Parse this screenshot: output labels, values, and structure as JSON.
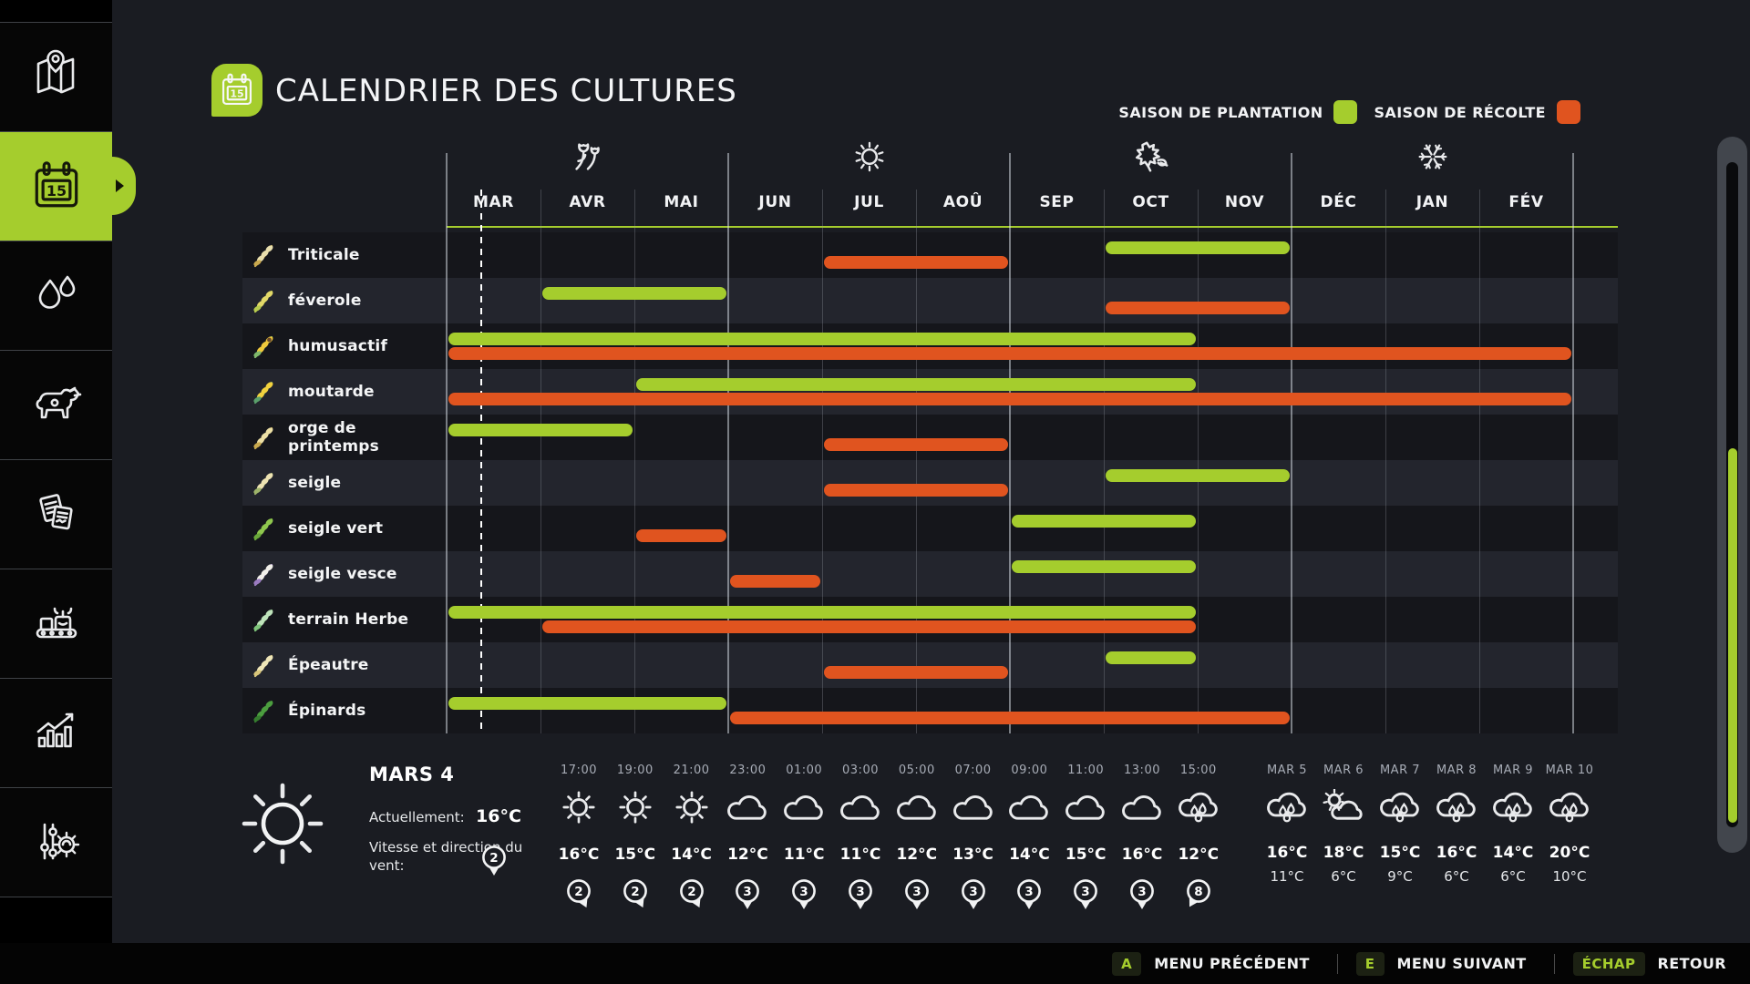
{
  "colors": {
    "plantation_green": "#a5cd2d",
    "recolte_orange": "#e0541f",
    "background": "#1a1c22",
    "row_dark": "#15161b",
    "row_light": "#23252d"
  },
  "header": {
    "title": "CALENDRIER DES CULTURES",
    "title_icon": "calendar-icon",
    "legend": [
      {
        "label": "SAISON DE PLANTATION",
        "color": "#a5cd2d"
      },
      {
        "label": "SAISON DE RÉCOLTE",
        "color": "#e0541f"
      }
    ]
  },
  "sidebar": {
    "items": [
      {
        "icon": "map-icon",
        "selected": false
      },
      {
        "icon": "calendar-icon",
        "selected": true
      },
      {
        "icon": "water-drops-icon",
        "selected": false
      },
      {
        "icon": "livestock-cow-icon",
        "selected": false
      },
      {
        "icon": "contracts-documents-icon",
        "selected": false
      },
      {
        "icon": "production-conveyor-icon",
        "selected": false
      },
      {
        "icon": "statistics-chart-icon",
        "selected": false
      },
      {
        "icon": "settings-sliders-gear-icon",
        "selected": false
      }
    ]
  },
  "chart_data": {
    "type": "gantt",
    "title": "CALENDRIER DES CULTURES",
    "months": [
      "MAR",
      "AVR",
      "MAI",
      "JUN",
      "JUL",
      "AOÛ",
      "SEP",
      "OCT",
      "NOV",
      "DÉC",
      "JAN",
      "FÉV"
    ],
    "season_icons": [
      {
        "icon": "spring-flower-icon",
        "month_index": 1
      },
      {
        "icon": "summer-sun-icon",
        "month_index": 4
      },
      {
        "icon": "autumn-leaf-icon",
        "month_index": 7
      },
      {
        "icon": "winter-snowflake-icon",
        "month_index": 10
      }
    ],
    "current_day_line_month_fraction": 0.36,
    "legend_plant": "SAISON DE PLANTATION",
    "legend_harvest": "SAISON DE RÉCOLTE",
    "crops": [
      {
        "name": "Triticale",
        "plant": [
          7,
          8
        ],
        "harvest": [
          4,
          5
        ],
        "plant_months": "OCT-NOV",
        "harvest_months": "JUL-AOÛ",
        "icon_colors": [
          "#e9dfae",
          "#c9a94e",
          ""
        ]
      },
      {
        "name": "féverole",
        "plant": [
          1,
          2
        ],
        "harvest": [
          7,
          8
        ],
        "plant_months": "AVR-MAI",
        "harvest_months": "OCT-NOV",
        "icon_colors": [
          "#e3d968",
          "#b8cc4e",
          ""
        ]
      },
      {
        "name": "humusactif",
        "plant": [
          0,
          7
        ],
        "harvest": [
          0,
          11
        ],
        "plant_months": "MAR-OCT",
        "harvest_months": "MAR-FÉV",
        "icon_colors": [
          "#f0c93c",
          "#7fb86b",
          "#6b4a2b"
        ]
      },
      {
        "name": "moutarde",
        "plant": [
          2,
          7
        ],
        "harvest": [
          0,
          11
        ],
        "plant_months": "MAI-OCT",
        "harvest_months": "MAR-FÉV",
        "icon_colors": [
          "#f2d23e",
          "#5aa06b",
          ""
        ]
      },
      {
        "name": "orge de printemps",
        "plant": [
          0,
          1
        ],
        "harvest": [
          4,
          5
        ],
        "plant_months": "MAR-AVR",
        "harvest_months": "JUL-AOÛ",
        "icon_colors": [
          "#ecdfa5",
          "#c9a94e",
          ""
        ]
      },
      {
        "name": "seigle",
        "plant": [
          7,
          8
        ],
        "harvest": [
          4,
          5
        ],
        "plant_months": "OCT-NOV",
        "harvest_months": "JUL-AOÛ",
        "icon_colors": [
          "#ede3b2",
          "#9db36a",
          ""
        ]
      },
      {
        "name": "seigle vert",
        "plant": [
          6,
          7
        ],
        "harvest": [
          2,
          2
        ],
        "plant_months": "SEP-OCT",
        "harvest_months": "MAI",
        "icon_colors": [
          "#8fc74e",
          "#6aa83a",
          ""
        ]
      },
      {
        "name": "seigle vesce",
        "plant": [
          6,
          7
        ],
        "harvest": [
          3,
          3
        ],
        "plant_months": "SEP-OCT",
        "harvest_months": "JUN",
        "icon_colors": [
          "#f2f0ea",
          "#9a7bc0",
          ""
        ]
      },
      {
        "name": "terrain Herbe",
        "plant": [
          0,
          7
        ],
        "harvest": [
          1,
          7
        ],
        "plant_months": "MAR-OCT",
        "harvest_months": "AVR-OCT",
        "icon_colors": [
          "#bfe3bb",
          "#7ec47a",
          ""
        ]
      },
      {
        "name": "Épeautre",
        "plant": [
          7,
          7
        ],
        "harvest": [
          4,
          5
        ],
        "plant_months": "OCT",
        "harvest_months": "JUL-AOÛ",
        "icon_colors": [
          "#efe6b8",
          "#d9c67a",
          ""
        ]
      },
      {
        "name": "Épinards",
        "plant": [
          0,
          2
        ],
        "harvest": [
          3,
          8
        ],
        "plant_months": "MAR-MAI",
        "harvest_months": "JUN-NOV",
        "icon_colors": [
          "#4c9e3f",
          "#357c2e",
          ""
        ]
      }
    ]
  },
  "weather": {
    "current": {
      "icon": "sun-icon",
      "date": "MARS 4",
      "now_label": "Actuellement:",
      "temperature": "16°C",
      "wind_label": "Vitesse et direction du vent:",
      "wind_speed": "2",
      "wind_dir_deg": 0
    },
    "hourly": [
      {
        "time": "17:00",
        "icon": "sun-icon",
        "temp": "16°C",
        "wind": "2",
        "wind_dir_deg": -25
      },
      {
        "time": "19:00",
        "icon": "sun-icon",
        "temp": "15°C",
        "wind": "2",
        "wind_dir_deg": -25
      },
      {
        "time": "21:00",
        "icon": "sun-icon",
        "temp": "14°C",
        "wind": "2",
        "wind_dir_deg": -25
      },
      {
        "time": "23:00",
        "icon": "cloud-icon",
        "temp": "12°C",
        "wind": "3",
        "wind_dir_deg": 0
      },
      {
        "time": "01:00",
        "icon": "cloud-icon",
        "temp": "11°C",
        "wind": "3",
        "wind_dir_deg": 0
      },
      {
        "time": "03:00",
        "icon": "cloud-icon",
        "temp": "11°C",
        "wind": "3",
        "wind_dir_deg": 0
      },
      {
        "time": "05:00",
        "icon": "cloud-icon",
        "temp": "12°C",
        "wind": "3",
        "wind_dir_deg": 0
      },
      {
        "time": "07:00",
        "icon": "cloud-icon",
        "temp": "13°C",
        "wind": "3",
        "wind_dir_deg": 0
      },
      {
        "time": "09:00",
        "icon": "cloud-icon",
        "temp": "14°C",
        "wind": "3",
        "wind_dir_deg": 0
      },
      {
        "time": "11:00",
        "icon": "cloud-icon",
        "temp": "15°C",
        "wind": "3",
        "wind_dir_deg": 0
      },
      {
        "time": "13:00",
        "icon": "cloud-icon",
        "temp": "16°C",
        "wind": "3",
        "wind_dir_deg": 0
      },
      {
        "time": "15:00",
        "icon": "rain-cloud-icon",
        "temp": "12°C",
        "wind": "8",
        "wind_dir_deg": 30
      }
    ],
    "daily": [
      {
        "date": "MAR 5",
        "icon": "rain-cloud-icon",
        "high": "16°C",
        "low": "11°C"
      },
      {
        "date": "MAR 6",
        "icon": "partly-sunny-icon",
        "high": "18°C",
        "low": "6°C"
      },
      {
        "date": "MAR 7",
        "icon": "rain-cloud-icon",
        "high": "15°C",
        "low": "9°C"
      },
      {
        "date": "MAR 8",
        "icon": "rain-cloud-icon",
        "high": "16°C",
        "low": "6°C"
      },
      {
        "date": "MAR 9",
        "icon": "rain-cloud-icon",
        "high": "14°C",
        "low": "6°C"
      },
      {
        "date": "MAR 10",
        "icon": "rain-cloud-icon",
        "high": "20°C",
        "low": "10°C"
      }
    ]
  },
  "footer": {
    "shortcuts": [
      {
        "key": "A",
        "label": "MENU PRÉCÉDENT"
      },
      {
        "key": "E",
        "label": "MENU SUIVANT"
      },
      {
        "key": "ÉCHAP",
        "label": "RETOUR"
      }
    ]
  }
}
